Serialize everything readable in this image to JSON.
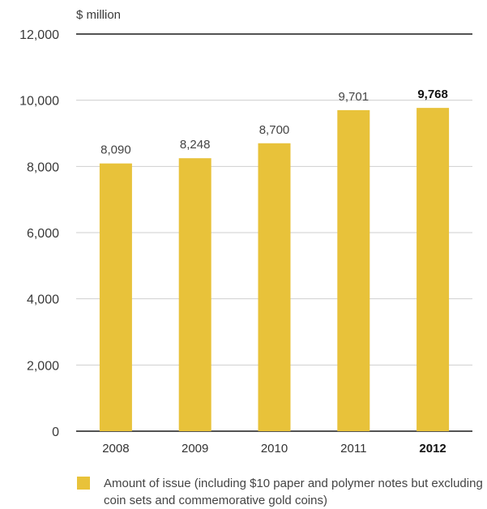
{
  "chart_data": {
    "type": "bar",
    "unit_label": "$ million",
    "categories": [
      "2008",
      "2009",
      "2010",
      "2011",
      "2012"
    ],
    "values": [
      8090,
      8248,
      8700,
      9701,
      9768
    ],
    "value_labels": [
      "8,090",
      "8,248",
      "8,700",
      "9,701",
      "9,768"
    ],
    "highlight_index": 4,
    "yticks": [
      0,
      2000,
      4000,
      6000,
      8000,
      10000,
      12000
    ],
    "ytick_labels": [
      "0",
      "2,000",
      "4,000",
      "6,000",
      "8,000",
      "10,000",
      "12,000"
    ],
    "ylim": [
      0,
      12000
    ],
    "grid": true,
    "bar_color": "#e8c23a",
    "legend_position": "bottom",
    "legend_entries": [
      "Amount of issue (including $10 paper and polymer notes but excluding coin sets and commemorative gold coins)"
    ]
  }
}
